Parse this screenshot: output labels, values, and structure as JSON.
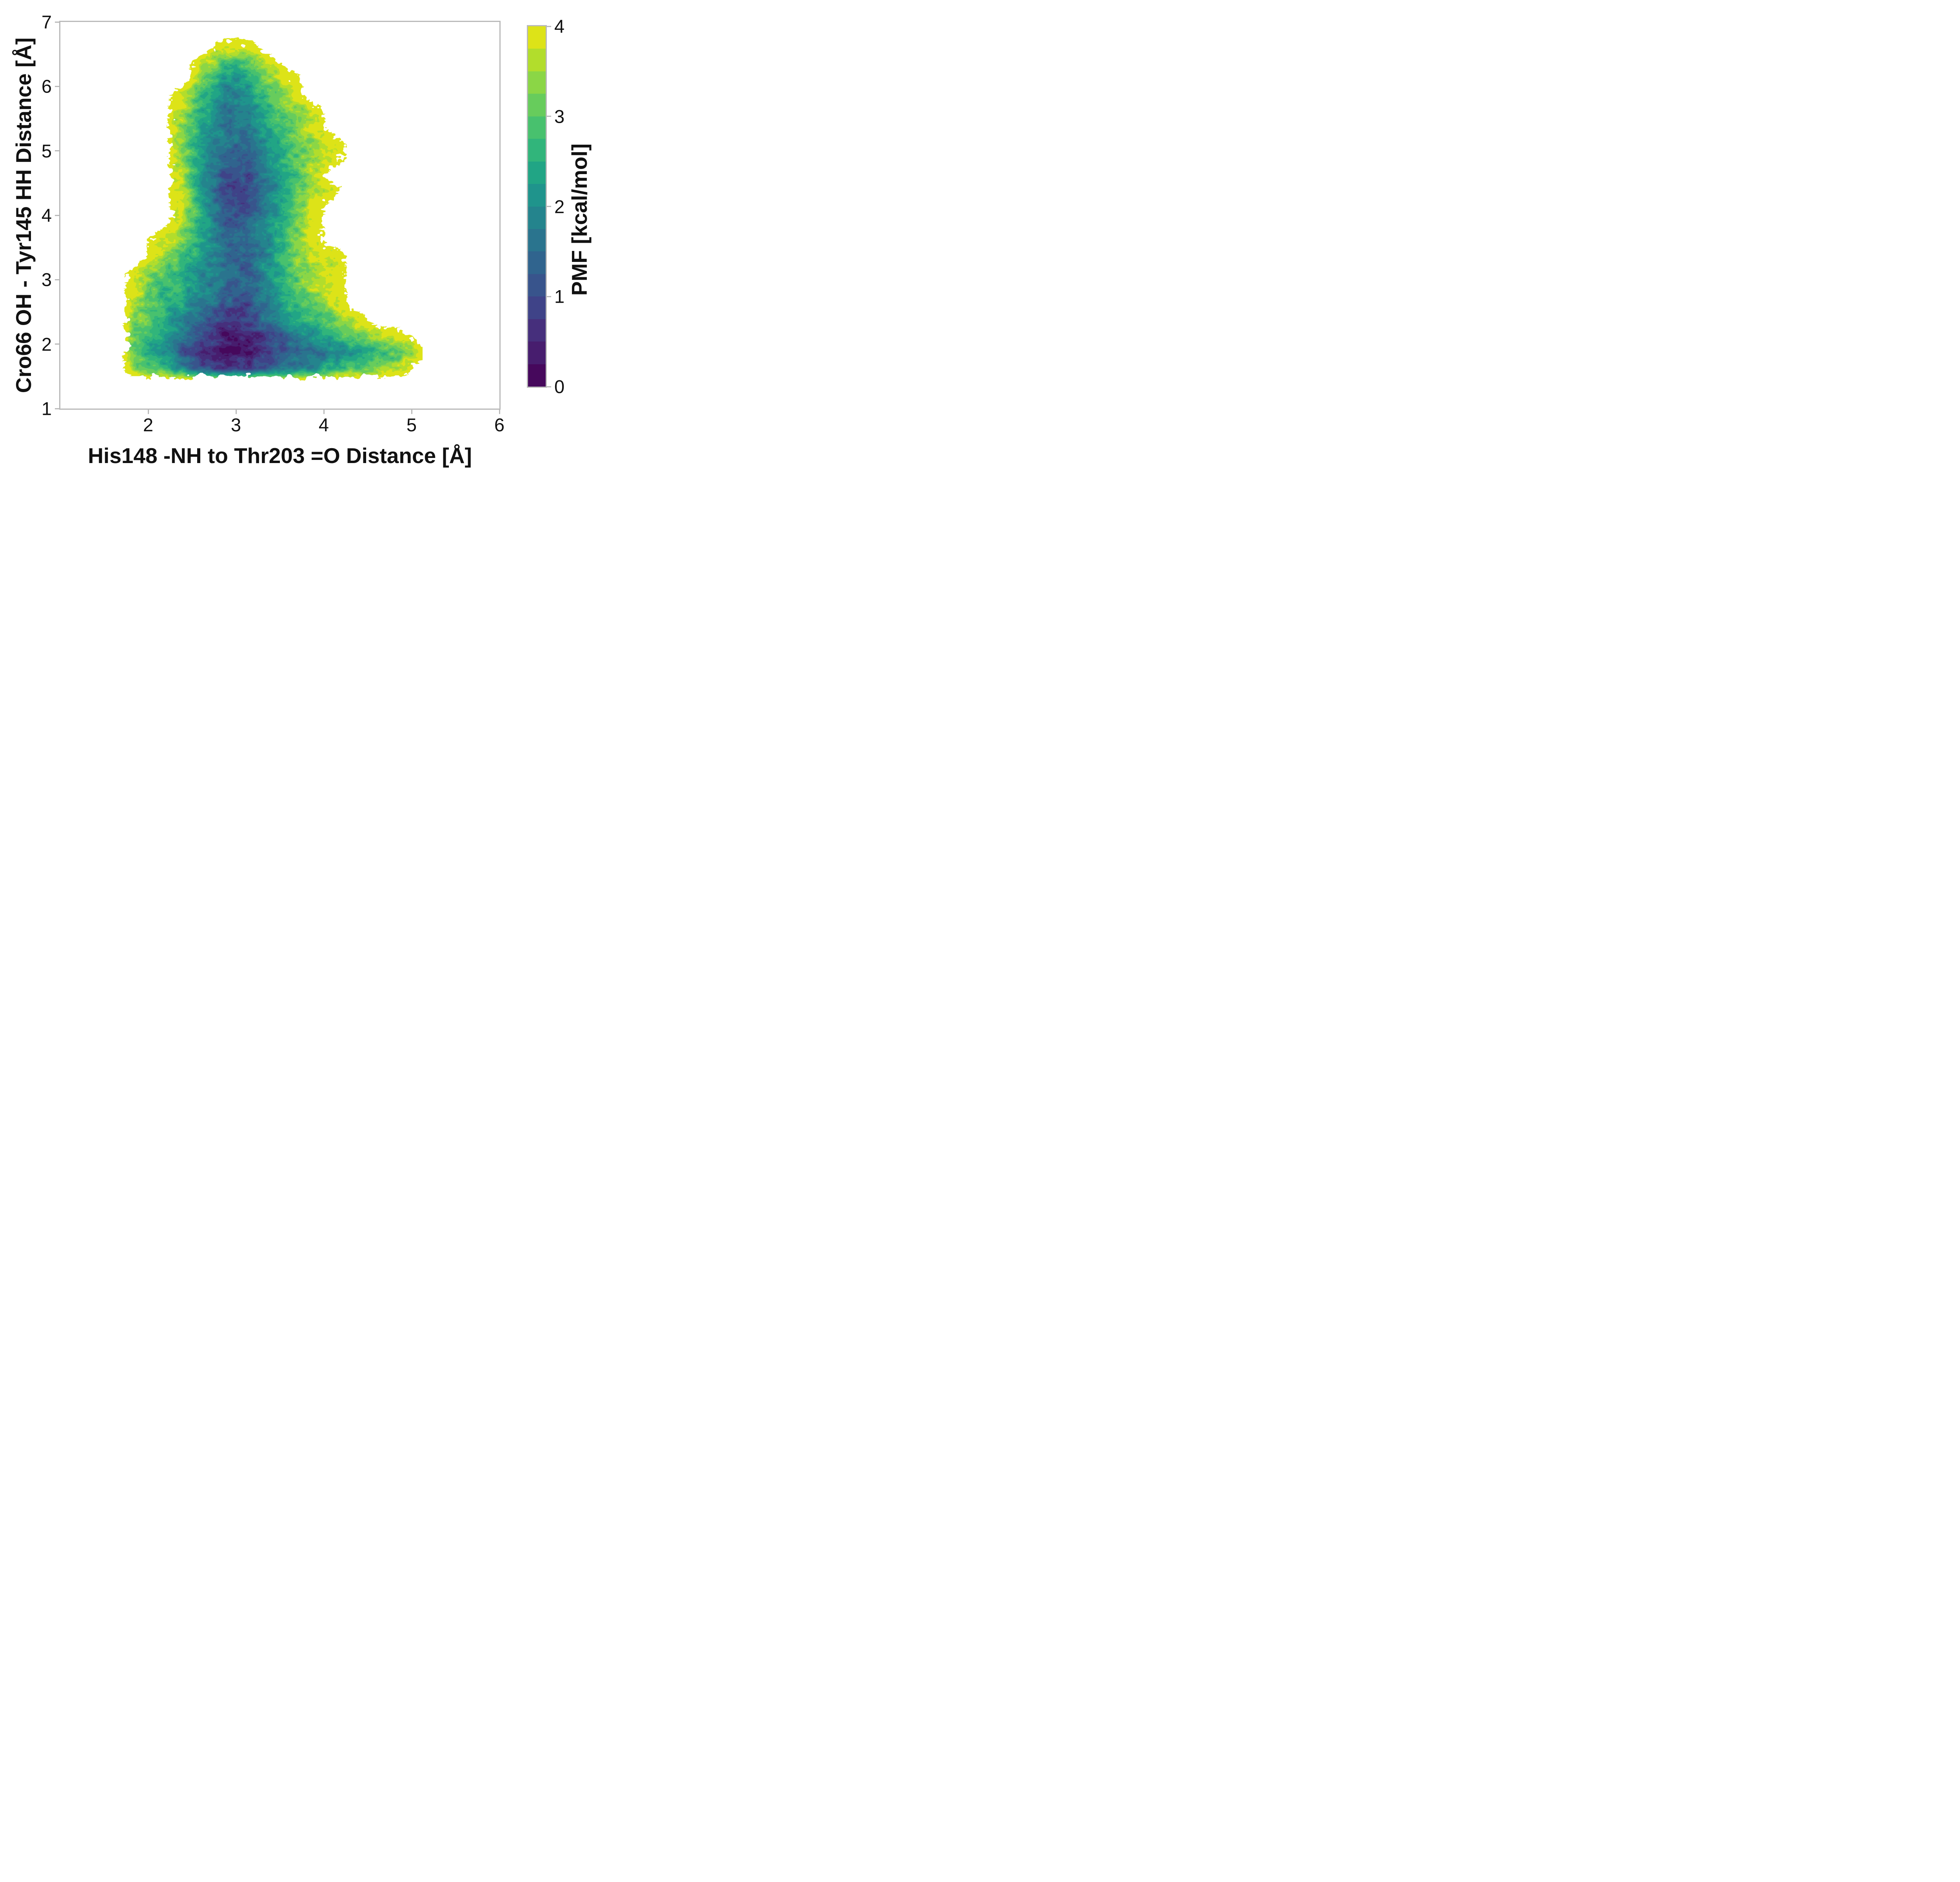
{
  "figure": {
    "background": "#ffffff",
    "frame_color": "#b9b9b9",
    "text_color": "#111111"
  },
  "chart_data": {
    "type": "filled_contour",
    "title": "",
    "xlabel": "His148 -NH to Thr203 =O Distance [Å]",
    "ylabel": "Cro66 OH - Tyr145 HH Distance [Å]",
    "xlim": [
      1,
      6
    ],
    "ylim": [
      1,
      7
    ],
    "x_ticks": [
      2,
      3,
      4,
      5,
      6
    ],
    "y_ticks": [
      1,
      2,
      3,
      4,
      5,
      6,
      7
    ],
    "grid_lines": false,
    "legend": "none",
    "colorbar": {
      "label": "PMF [kcal/mol]",
      "ticks": [
        0,
        1,
        2,
        3,
        4
      ],
      "vmin": 0,
      "vmax": 4,
      "n_levels": 16,
      "level_step": 0.25,
      "colormap": "viridis",
      "colors": [
        "#46085c",
        "#471d6e",
        "#462f7c",
        "#3f4388",
        "#38548c",
        "#30648e",
        "#2a748e",
        "#24848d",
        "#1f948c",
        "#21a585",
        "#31b57b",
        "#48c16e",
        "#67cc5c",
        "#8bd646",
        "#b2dd2c",
        "#dde318"
      ]
    },
    "features": {
      "global_minimum": {
        "x": 2.9,
        "y": 1.8,
        "pmf_kcal_mol": 0.0
      },
      "local_minimum": {
        "x": 3.05,
        "y": 4.4,
        "pmf_kcal_mol": 0.9
      },
      "sampled_region_x": [
        1.7,
        5.15
      ],
      "sampled_region_y": [
        1.45,
        6.7
      ]
    },
    "grid": {
      "x_start": 1.625,
      "x_step": 0.25,
      "nx": 15,
      "y_start": 6.875,
      "y_step": -0.25,
      "ny": 23,
      "pmf_values": [
        [
          null,
          null,
          null,
          null,
          null,
          null,
          null,
          null,
          null,
          null,
          null,
          null,
          null,
          null,
          null
        ],
        [
          null,
          null,
          null,
          null,
          null,
          3.9,
          4.0,
          null,
          null,
          null,
          null,
          null,
          null,
          null,
          null
        ],
        [
          null,
          null,
          null,
          null,
          3.6,
          2.8,
          2.9,
          3.8,
          null,
          null,
          null,
          null,
          null,
          null,
          null
        ],
        [
          null,
          null,
          null,
          null,
          3.2,
          2.2,
          2.4,
          3.3,
          3.9,
          null,
          null,
          null,
          null,
          null,
          null
        ],
        [
          null,
          null,
          null,
          3.9,
          2.7,
          1.8,
          2.0,
          2.9,
          3.7,
          null,
          null,
          null,
          null,
          null,
          null
        ],
        [
          null,
          null,
          null,
          3.6,
          2.4,
          1.6,
          1.8,
          2.6,
          3.4,
          3.9,
          null,
          null,
          null,
          null,
          null
        ],
        [
          null,
          null,
          null,
          3.3,
          2.2,
          1.6,
          1.7,
          2.4,
          3.0,
          3.7,
          null,
          null,
          null,
          null,
          null
        ],
        [
          null,
          null,
          null,
          3.4,
          2.1,
          1.5,
          1.5,
          2.2,
          2.8,
          3.5,
          3.9,
          null,
          null,
          null,
          null
        ],
        [
          null,
          null,
          null,
          3.5,
          2.0,
          1.3,
          1.2,
          2.0,
          2.7,
          3.4,
          4.0,
          null,
          null,
          null,
          null
        ],
        [
          null,
          null,
          null,
          3.6,
          2.1,
          1.1,
          0.9,
          1.9,
          2.7,
          3.5,
          null,
          null,
          null,
          null,
          null
        ],
        [
          null,
          null,
          null,
          3.7,
          2.2,
          1.0,
          0.8,
          1.8,
          2.6,
          3.6,
          4.0,
          null,
          null,
          null,
          null
        ],
        [
          null,
          null,
          null,
          3.8,
          2.3,
          1.2,
          1.0,
          1.9,
          2.8,
          3.8,
          null,
          null,
          null,
          null,
          null
        ],
        [
          null,
          null,
          null,
          3.7,
          2.4,
          1.4,
          1.3,
          2.0,
          3.0,
          3.9,
          null,
          null,
          null,
          null,
          null
        ],
        [
          null,
          null,
          3.9,
          3.3,
          2.3,
          1.5,
          1.4,
          2.1,
          3.1,
          3.9,
          null,
          null,
          null,
          null,
          null
        ],
        [
          null,
          null,
          3.6,
          2.9,
          2.2,
          1.5,
          1.4,
          2.2,
          3.0,
          3.7,
          3.9,
          null,
          null,
          null,
          null
        ],
        [
          null,
          3.9,
          3.2,
          2.7,
          2.0,
          1.4,
          1.3,
          2.1,
          2.9,
          3.5,
          3.9,
          null,
          null,
          null,
          null
        ],
        [
          null,
          3.7,
          3.0,
          2.5,
          1.9,
          1.3,
          1.2,
          2.0,
          2.8,
          3.4,
          3.8,
          null,
          null,
          null,
          null
        ],
        [
          null,
          3.5,
          2.8,
          2.3,
          1.7,
          1.2,
          1.0,
          1.8,
          2.6,
          3.2,
          3.7,
          null,
          null,
          null,
          null
        ],
        [
          null,
          3.3,
          2.6,
          2.1,
          1.4,
          0.9,
          0.8,
          1.5,
          2.2,
          2.8,
          3.3,
          3.8,
          null,
          null,
          null
        ],
        [
          null,
          3.0,
          2.4,
          1.7,
          1.0,
          0.5,
          0.5,
          1.0,
          1.6,
          2.1,
          2.6,
          3.0,
          3.4,
          3.9,
          null
        ],
        [
          null,
          2.9,
          2.2,
          1.3,
          0.5,
          0.1,
          0.2,
          0.7,
          1.1,
          1.5,
          1.9,
          2.2,
          2.6,
          3.1,
          3.9
        ],
        [
          null,
          3.3,
          2.7,
          2.0,
          1.2,
          0.8,
          0.9,
          1.3,
          1.7,
          2.1,
          2.5,
          2.9,
          3.3,
          3.7,
          null
        ],
        [
          null,
          null,
          null,
          null,
          null,
          null,
          null,
          null,
          null,
          null,
          null,
          null,
          null,
          null,
          null
        ]
      ]
    }
  }
}
